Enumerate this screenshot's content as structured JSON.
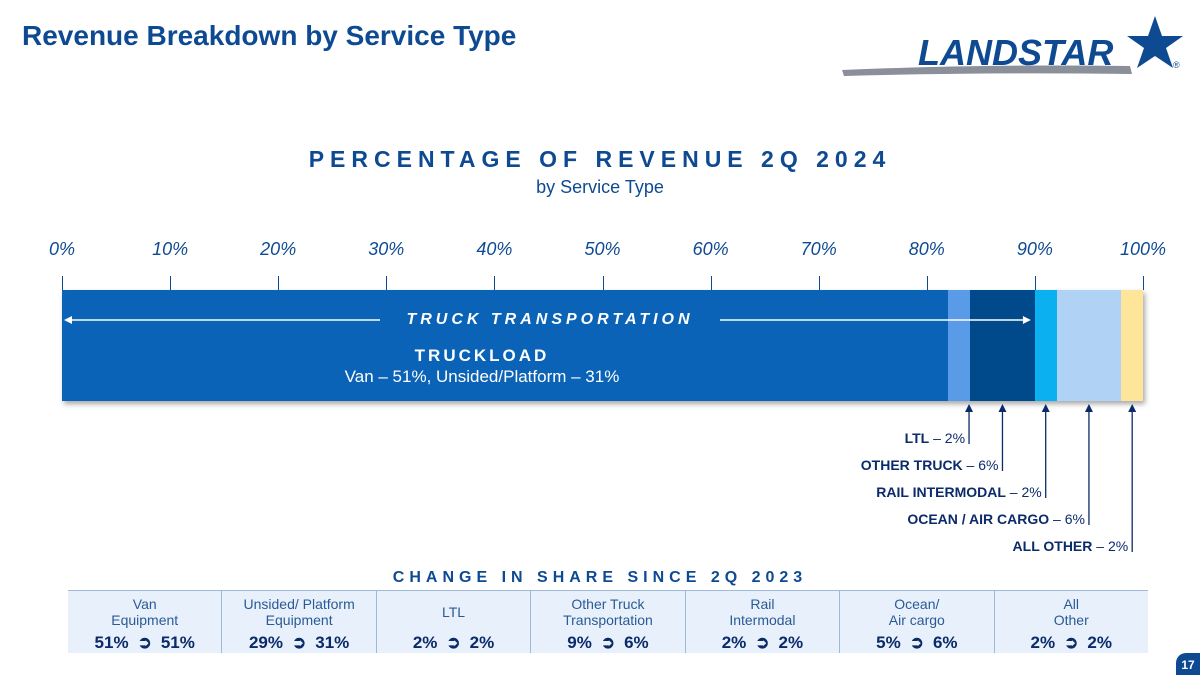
{
  "page": {
    "title": "Revenue Breakdown by Service Type",
    "logo_text": "LANDSTAR",
    "logo_mark": "®",
    "page_number": "17"
  },
  "chart_data": {
    "type": "bar",
    "orientation": "horizontal-stacked",
    "title": "PERCENTAGE OF REVENUE 2Q 2024",
    "subtitle": "by Service Type",
    "axis": {
      "ticks": [
        "0%",
        "10%",
        "20%",
        "30%",
        "40%",
        "50%",
        "60%",
        "70%",
        "80%",
        "90%",
        "100%"
      ],
      "min": 0,
      "max": 100
    },
    "segments": [
      {
        "key": "truckload",
        "value": 82,
        "color": "#0a63b6"
      },
      {
        "key": "ltl",
        "value": 2,
        "color": "#5a9be8"
      },
      {
        "key": "other_truck",
        "value": 6,
        "color": "#004a8c"
      },
      {
        "key": "rail_intermodal",
        "value": 2,
        "color": "#0ab0f0"
      },
      {
        "key": "ocean_air_cargo",
        "value": 6,
        "color": "#b0d2f4"
      },
      {
        "key": "all_other",
        "value": 2,
        "color": "#fde69a"
      }
    ],
    "group": {
      "label": "TRUCK TRANSPORTATION",
      "from": 0,
      "to": 90
    },
    "truckload_label": "TRUCKLOAD",
    "truckload_sublabel": "Van – 51%, Unsided/Platform – 31%",
    "callouts": [
      {
        "name": "LTL",
        "value": " – 2%",
        "segment": "ltl"
      },
      {
        "name": "OTHER TRUCK",
        "value": " – 6%",
        "segment": "other_truck"
      },
      {
        "name": "RAIL INTERMODAL",
        "value": " – 2%",
        "segment": "rail_intermodal"
      },
      {
        "name": "OCEAN / AIR CARGO",
        "value": " – 6%",
        "segment": "ocean_air_cargo"
      },
      {
        "name": "ALL OTHER",
        "value": " – 2%",
        "segment": "all_other"
      }
    ]
  },
  "change_section": {
    "title": "CHANGE IN SHARE SINCE 2Q 2023",
    "arrow": "➲",
    "items": [
      {
        "label_line1": "Van",
        "label_line2": "Equipment",
        "from": "51%",
        "to": "51%"
      },
      {
        "label_line1": "Unsided/ Platform",
        "label_line2": "Equipment",
        "from": "29%",
        "to": "31%"
      },
      {
        "label_line1": "LTL",
        "label_line2": "",
        "from": "2%",
        "to": "2%"
      },
      {
        "label_line1": "Other Truck",
        "label_line2": "Transportation",
        "from": "9%",
        "to": "6%"
      },
      {
        "label_line1": "Rail",
        "label_line2": "Intermodal",
        "from": "2%",
        "to": "2%"
      },
      {
        "label_line1": "Ocean/",
        "label_line2": "Air cargo",
        "from": "5%",
        "to": "6%"
      },
      {
        "label_line1": "All",
        "label_line2": "Other",
        "from": "2%",
        "to": "2%"
      }
    ]
  }
}
